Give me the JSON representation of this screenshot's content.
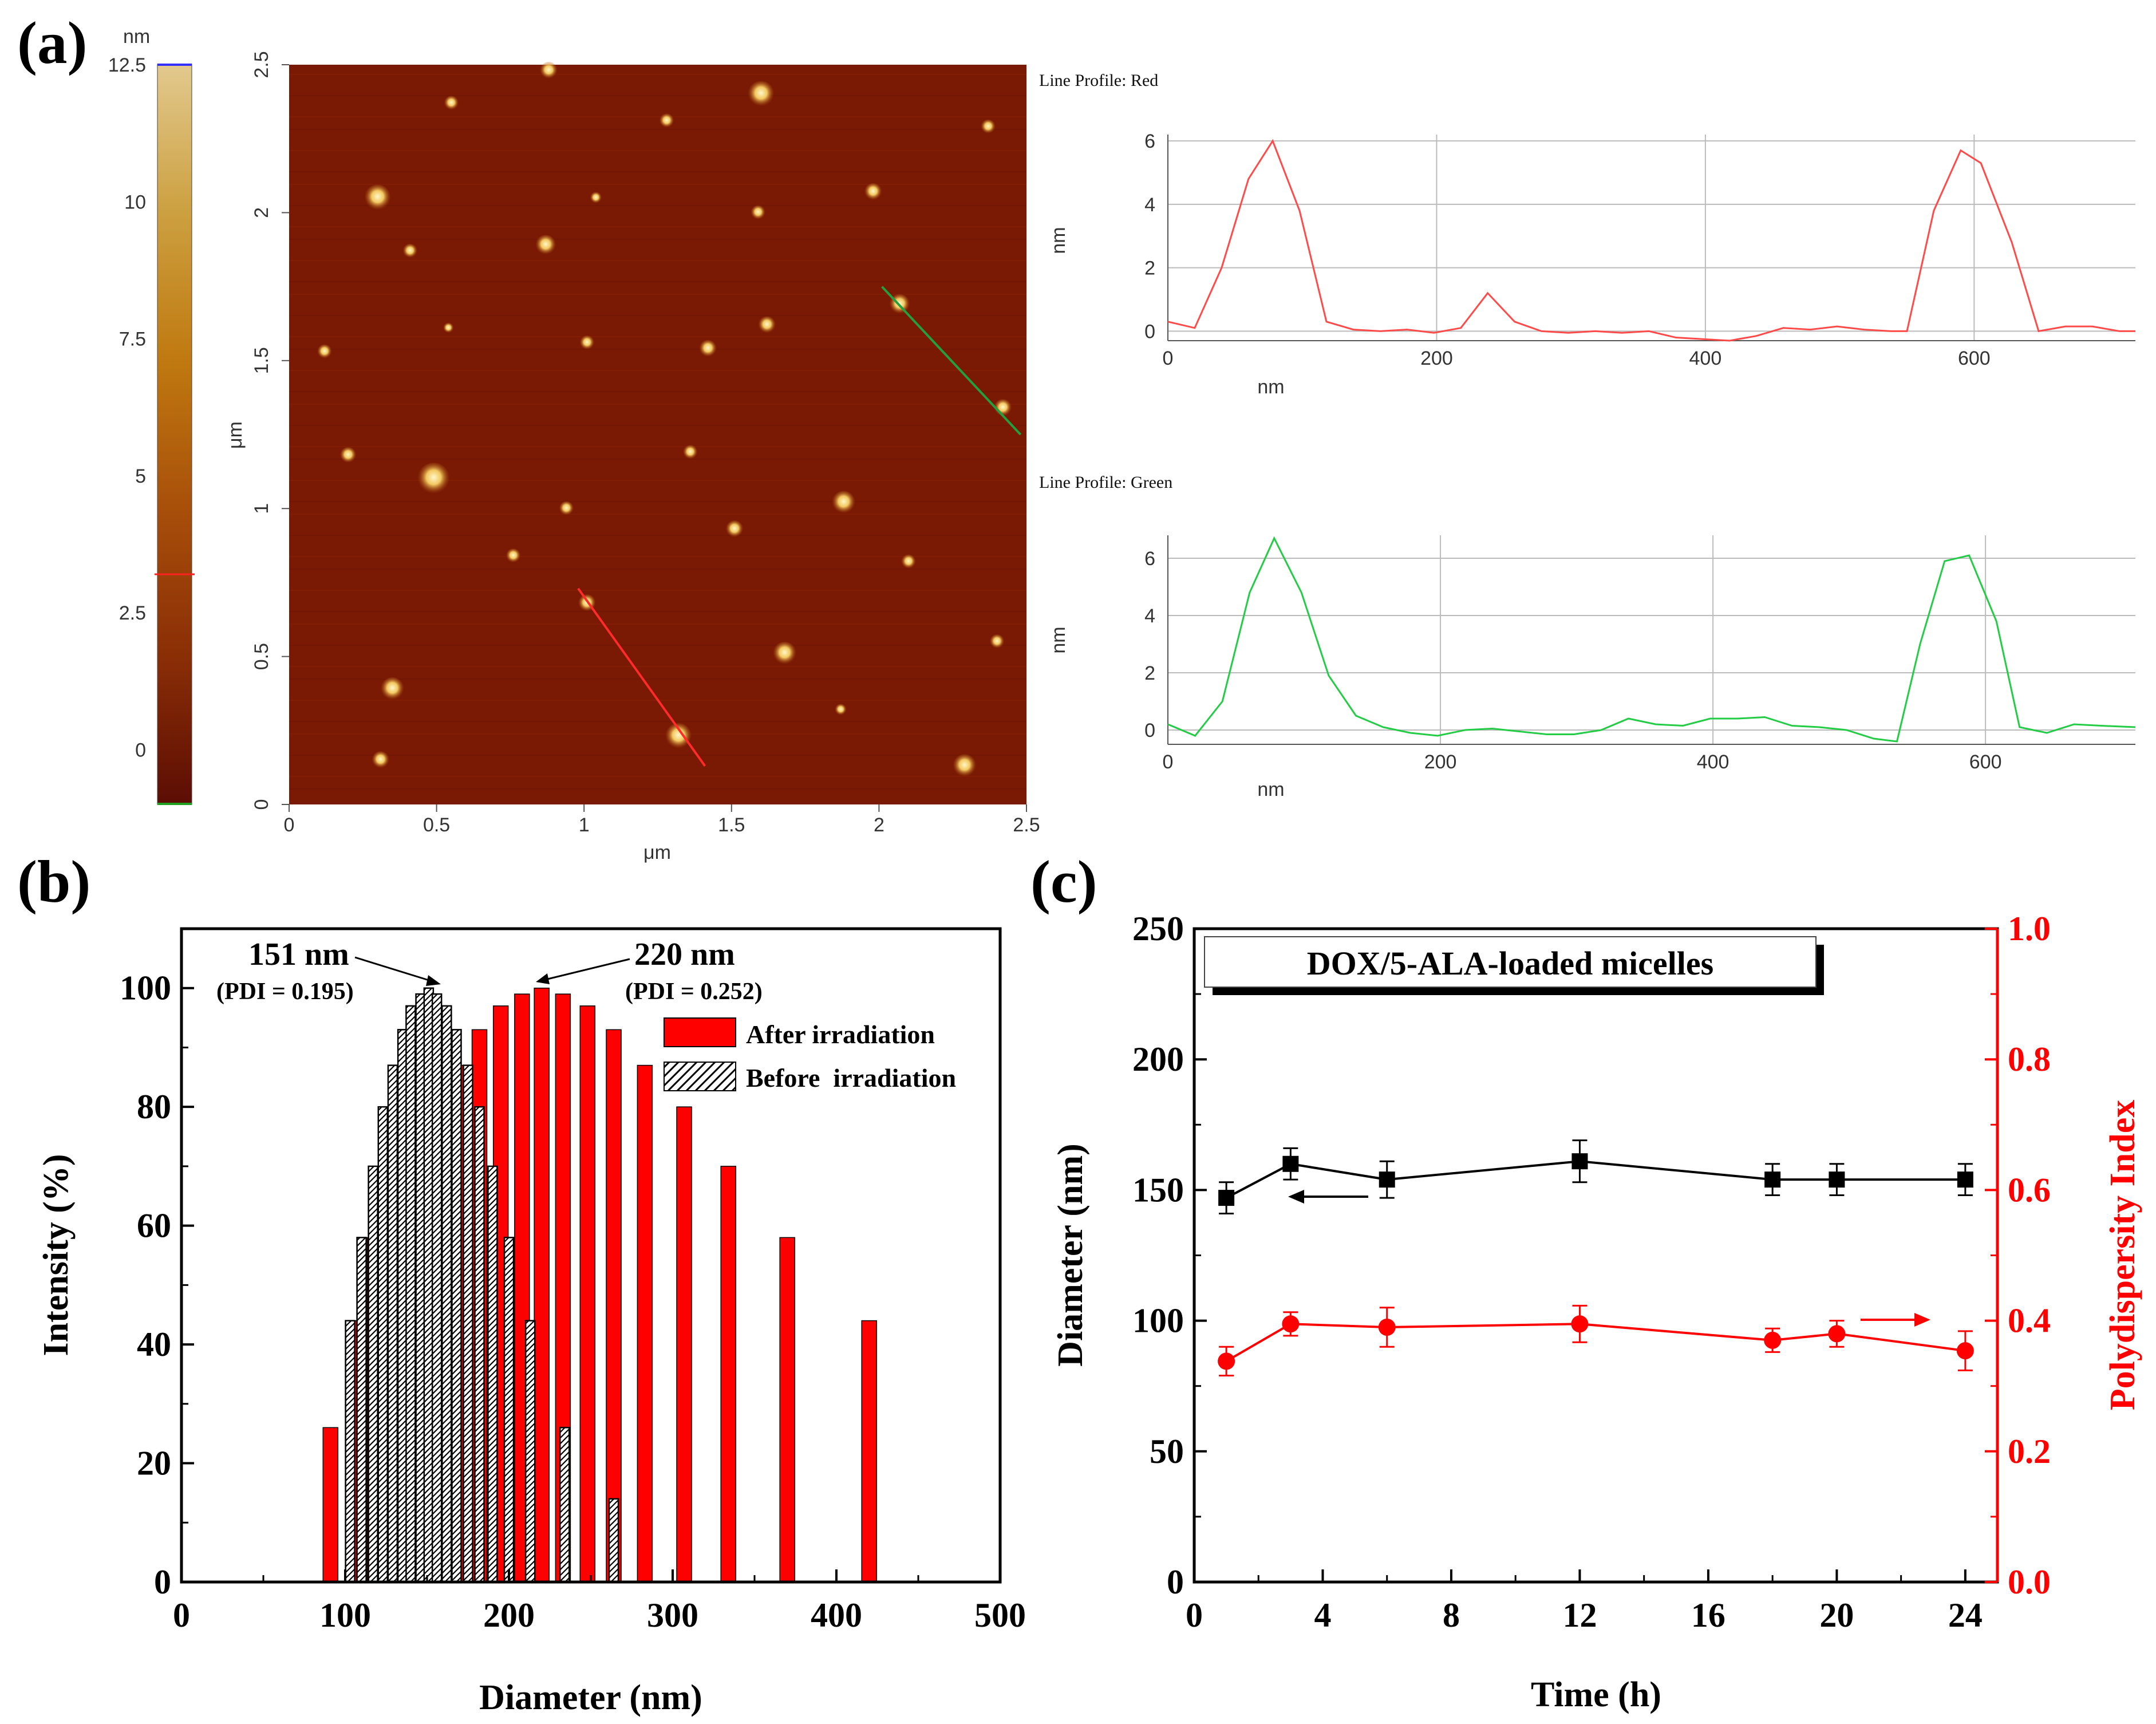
{
  "panels": {
    "a": {
      "letter": "(a)"
    },
    "b": {
      "letter": "(b)"
    },
    "c": {
      "letter": "(c)"
    }
  },
  "afm": {
    "colorbar": {
      "unit": "nm",
      "ticks": [
        "12.5",
        "10",
        "7.5",
        "5",
        "2.5",
        "0"
      ],
      "range": [
        -1,
        12.5
      ],
      "marker_value": 3.2,
      "colors": [
        "#5c0d04",
        "#8a2e06",
        "#a84f0a",
        "#c07910",
        "#cca040",
        "#e2c98e"
      ]
    },
    "image": {
      "range": [
        0,
        2.5
      ],
      "x_ticks": [
        "0",
        "0.5",
        "1",
        "1.5",
        "2",
        "2.5"
      ],
      "y_ticks": [
        "0",
        "0.5",
        "1",
        "1.5",
        "2",
        "2.5"
      ],
      "x_label": "μm",
      "y_label": "μm",
      "background": "#7a1a04",
      "particles_um": [
        [
          0.88,
          2.48,
          0.03
        ],
        [
          0.55,
          2.37,
          0.025
        ],
        [
          1.6,
          2.4,
          0.045
        ],
        [
          1.28,
          2.31,
          0.025
        ],
        [
          2.37,
          2.29,
          0.025
        ],
        [
          0.3,
          2.05,
          0.045
        ],
        [
          1.04,
          2.05,
          0.02
        ],
        [
          1.98,
          2.07,
          0.03
        ],
        [
          1.59,
          2.0,
          0.025
        ],
        [
          0.41,
          1.87,
          0.025
        ],
        [
          0.87,
          1.89,
          0.035
        ],
        [
          2.07,
          1.69,
          0.035
        ],
        [
          1.62,
          1.62,
          0.03
        ],
        [
          0.54,
          1.61,
          0.018
        ],
        [
          1.01,
          1.56,
          0.025
        ],
        [
          0.12,
          1.53,
          0.025
        ],
        [
          1.42,
          1.54,
          0.03
        ],
        [
          2.42,
          1.34,
          0.03
        ],
        [
          0.2,
          1.18,
          0.028
        ],
        [
          1.36,
          1.19,
          0.025
        ],
        [
          0.49,
          1.1,
          0.055
        ],
        [
          1.88,
          1.02,
          0.04
        ],
        [
          0.94,
          1.0,
          0.025
        ],
        [
          1.51,
          0.93,
          0.03
        ],
        [
          0.76,
          0.84,
          0.025
        ],
        [
          2.1,
          0.82,
          0.025
        ],
        [
          1.01,
          0.68,
          0.03
        ],
        [
          2.4,
          0.55,
          0.025
        ],
        [
          1.68,
          0.51,
          0.04
        ],
        [
          0.35,
          0.39,
          0.04
        ],
        [
          1.87,
          0.32,
          0.02
        ],
        [
          1.32,
          0.23,
          0.045
        ],
        [
          0.31,
          0.15,
          0.03
        ],
        [
          2.29,
          0.13,
          0.04
        ]
      ],
      "red_line_um": [
        [
          0.98,
          0.73
        ],
        [
          1.41,
          0.13
        ]
      ],
      "green_line_um": [
        [
          2.01,
          1.75
        ],
        [
          2.48,
          1.25
        ]
      ]
    },
    "profiles": [
      {
        "name": "red",
        "title": "Line Profile: Red",
        "color": "#ff4a4a",
        "x_label": "nm",
        "y_label": "nm",
        "x_range": [
          0,
          720
        ],
        "y_range": [
          -0.3,
          6.2
        ],
        "x_ticks": [
          0,
          200,
          400,
          600
        ],
        "y_ticks": [
          0,
          2,
          4,
          6
        ],
        "points": [
          [
            0,
            0.3
          ],
          [
            20,
            0.1
          ],
          [
            40,
            2
          ],
          [
            60,
            4.8
          ],
          [
            78,
            6
          ],
          [
            98,
            3.8
          ],
          [
            118,
            0.3
          ],
          [
            138,
            0.05
          ],
          [
            158,
            0
          ],
          [
            178,
            0.05
          ],
          [
            198,
            -0.05
          ],
          [
            218,
            0.1
          ],
          [
            238,
            1.2
          ],
          [
            258,
            0.3
          ],
          [
            278,
            0
          ],
          [
            298,
            -0.05
          ],
          [
            318,
            0
          ],
          [
            338,
            -0.05
          ],
          [
            358,
            0
          ],
          [
            378,
            -0.2
          ],
          [
            398,
            -0.25
          ],
          [
            418,
            -0.3
          ],
          [
            438,
            -0.15
          ],
          [
            458,
            0.1
          ],
          [
            478,
            0.05
          ],
          [
            498,
            0.15
          ],
          [
            518,
            0.05
          ],
          [
            538,
            0
          ],
          [
            550,
            0
          ],
          [
            570,
            3.8
          ],
          [
            590,
            5.7
          ],
          [
            605,
            5.3
          ],
          [
            628,
            2.8
          ],
          [
            648,
            0
          ],
          [
            668,
            0.15
          ],
          [
            688,
            0.15
          ],
          [
            708,
            0
          ],
          [
            720,
            0
          ]
        ]
      },
      {
        "name": "green",
        "title": "Line Profile: Green",
        "color": "#22cc44",
        "x_label": "nm",
        "y_label": "nm",
        "x_range": [
          0,
          710
        ],
        "y_range": [
          -0.5,
          6.8
        ],
        "x_ticks": [
          0,
          200,
          400,
          600
        ],
        "y_ticks": [
          0,
          2,
          4,
          6
        ],
        "points": [
          [
            0,
            0.2
          ],
          [
            20,
            -0.2
          ],
          [
            40,
            1
          ],
          [
            60,
            4.8
          ],
          [
            78,
            6.7
          ],
          [
            98,
            4.8
          ],
          [
            118,
            1.9
          ],
          [
            138,
            0.5
          ],
          [
            158,
            0.1
          ],
          [
            178,
            -0.1
          ],
          [
            198,
            -0.2
          ],
          [
            218,
            0
          ],
          [
            238,
            0.05
          ],
          [
            258,
            -0.05
          ],
          [
            278,
            -0.15
          ],
          [
            298,
            -0.15
          ],
          [
            318,
            0
          ],
          [
            338,
            0.4
          ],
          [
            358,
            0.2
          ],
          [
            378,
            0.15
          ],
          [
            398,
            0.4
          ],
          [
            418,
            0.4
          ],
          [
            438,
            0.45
          ],
          [
            458,
            0.15
          ],
          [
            478,
            0.1
          ],
          [
            498,
            0
          ],
          [
            518,
            -0.3
          ],
          [
            535,
            -0.4
          ],
          [
            552,
            3
          ],
          [
            570,
            5.9
          ],
          [
            588,
            6.1
          ],
          [
            608,
            3.8
          ],
          [
            625,
            0.1
          ],
          [
            645,
            -0.1
          ],
          [
            665,
            0.2
          ],
          [
            685,
            0.15
          ],
          [
            710,
            0.1
          ]
        ]
      }
    ]
  },
  "chart_data": [
    {
      "panel": "b",
      "type": "bar",
      "xlabel": "Diameter (nm)",
      "ylabel": "Intensity (%)",
      "xlim": [
        0,
        500
      ],
      "ylim": [
        0,
        110
      ],
      "x_ticks": [
        0,
        100,
        200,
        300,
        400,
        500
      ],
      "y_ticks": [
        0,
        20,
        40,
        60,
        80,
        100
      ],
      "series": [
        {
          "name": "After irradiation",
          "color": "#ff0000",
          "x": [
            91,
            105,
            118,
            131,
            143,
            156,
            169,
            182,
            195,
            208,
            220,
            233,
            248,
            264,
            283,
            307,
            334,
            370,
            420
          ],
          "values": [
            26,
            44,
            58,
            70,
            80,
            87,
            87,
            93,
            97,
            99,
            100,
            99,
            97,
            93,
            87,
            80,
            70,
            58,
            44
          ]
        },
        {
          "name": "Before  irradiation",
          "color": "#000000",
          "x": [
            103,
            110,
            117,
            123,
            129,
            135,
            140,
            146,
            151,
            156,
            162,
            168,
            175,
            182,
            190,
            200,
            213,
            234,
            264
          ],
          "values": [
            44,
            58,
            70,
            80,
            87,
            93,
            97,
            99,
            100,
            99,
            97,
            93,
            87,
            80,
            70,
            58,
            44,
            26,
            14
          ]
        }
      ],
      "annotations": [
        {
          "text": "151 nm",
          "sub": "(PDI = 0.195)",
          "x": 151,
          "y": 100
        },
        {
          "text": "220 nm",
          "sub": "(PDI = 0.252)",
          "x": 220,
          "y": 100
        }
      ]
    },
    {
      "panel": "c",
      "type": "line",
      "title": "DOX/5-ALA-loaded micelles",
      "xlabel": "Time (h)",
      "ylabel": "Diameter (nm)",
      "y2label": "Polydispersity Index",
      "xlim": [
        0,
        25
      ],
      "ylim": [
        0,
        250
      ],
      "y2lim": [
        0,
        1.0
      ],
      "x_ticks": [
        0,
        4,
        8,
        12,
        16,
        20,
        24
      ],
      "y_ticks": [
        0,
        50,
        100,
        150,
        200,
        250
      ],
      "y2_ticks": [
        "0.0",
        "0.2",
        "0.4",
        "0.6",
        "0.8",
        "1.0"
      ],
      "series": [
        {
          "name": "Diameter",
          "axis": "left",
          "color": "#000000",
          "marker": "square",
          "x": [
            1,
            3,
            6,
            12,
            18,
            20,
            24
          ],
          "values": [
            147,
            160,
            154,
            161,
            154,
            154,
            154
          ],
          "errors": [
            6,
            6,
            7,
            8,
            6,
            6,
            6
          ]
        },
        {
          "name": "Polydispersity Index",
          "axis": "right",
          "color": "#ff0000",
          "marker": "circle",
          "x": [
            1,
            3,
            6,
            12,
            18,
            20,
            24
          ],
          "values": [
            0.338,
            0.395,
            0.39,
            0.395,
            0.37,
            0.38,
            0.354
          ],
          "errors": [
            0.022,
            0.018,
            0.03,
            0.028,
            0.018,
            0.02,
            0.03
          ]
        }
      ]
    }
  ]
}
